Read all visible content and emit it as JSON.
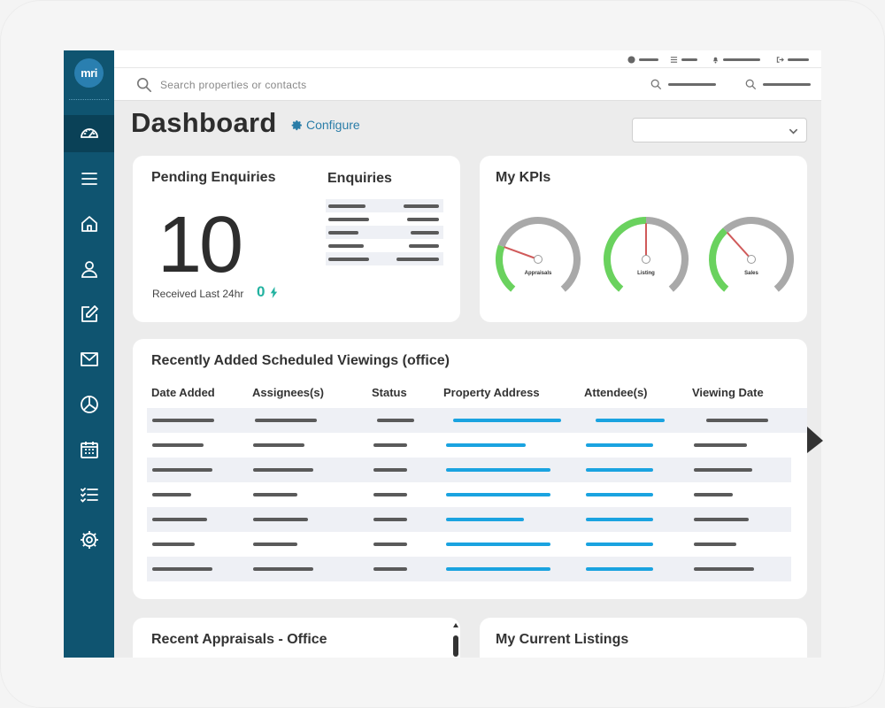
{
  "brand": {
    "logo_text": "mri"
  },
  "search": {
    "placeholder": "Search properties or contacts"
  },
  "header": {
    "title": "Dashboard",
    "configure_label": "Configure"
  },
  "pending": {
    "title": "Pending Enquiries",
    "count": "10",
    "received_label": "Received Last 24hr",
    "received_count": "0"
  },
  "enquiries": {
    "title": "Enquiries"
  },
  "kpis": {
    "title": "My KPIs",
    "gauges": [
      {
        "label": "Appraisals",
        "level": 0.25
      },
      {
        "label": "Listing",
        "level": 0.5
      },
      {
        "label": "Sales",
        "level": 0.35
      }
    ]
  },
  "viewings": {
    "title": "Recently Added Scheduled Viewings (office)",
    "columns": [
      "Date Added",
      "Assignees(s)",
      "Status",
      "Property Address",
      "Attendee(s)",
      "Viewing Date"
    ]
  },
  "appraisals": {
    "title": "Recent Appraisals - Office"
  },
  "listings": {
    "title": "My Current Listings"
  },
  "colors": {
    "sidebar": "#0f5470",
    "accent": "#2a7da8",
    "link_placeholder": "#1aa3e0",
    "gauge_green": "#6ad25e",
    "gauge_needle": "#d05a5a",
    "received_teal": "#22b2a0"
  },
  "icons": [
    "speedometer-icon",
    "menu-icon",
    "home-icon",
    "user-icon",
    "edit-icon",
    "mail-icon",
    "pie-chart-icon",
    "calendar-icon",
    "checklist-icon",
    "gear-icon"
  ]
}
